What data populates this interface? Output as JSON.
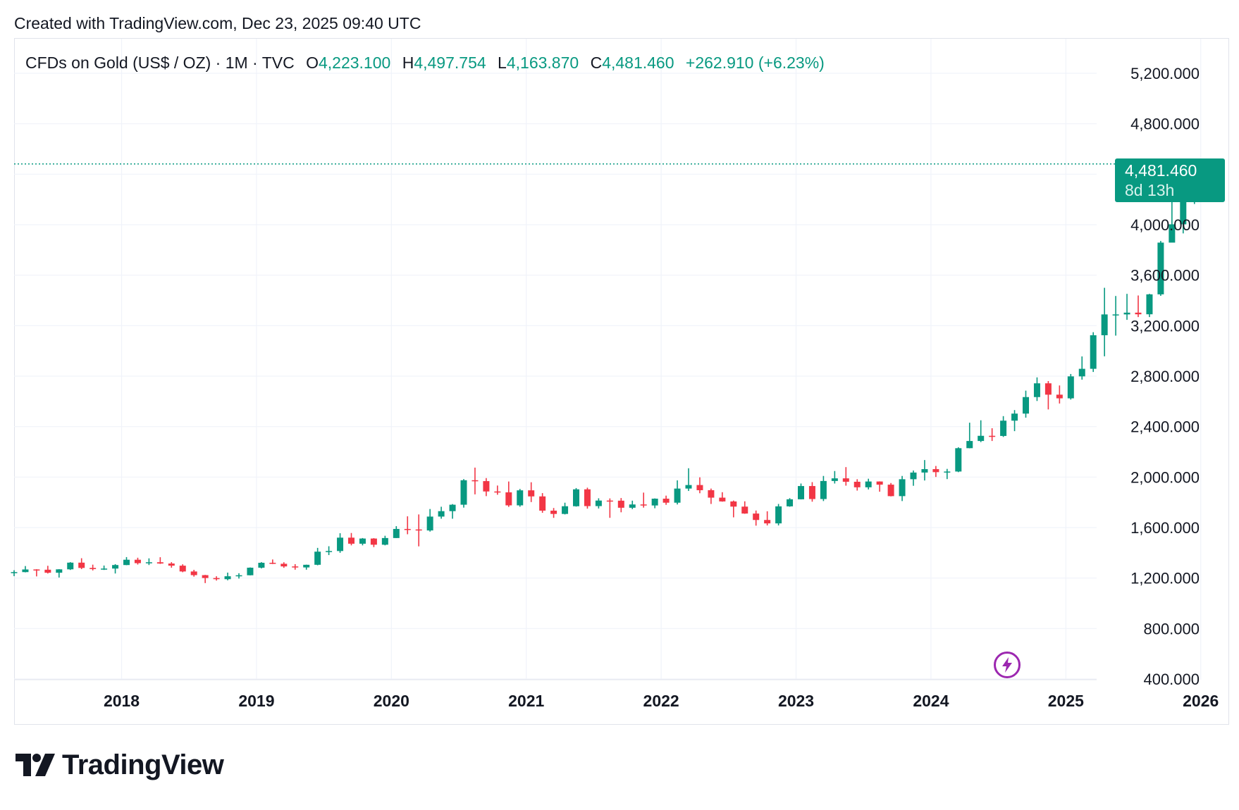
{
  "header": {
    "created": "Created with TradingView.com, Dec 23, 2025 09:40 UTC"
  },
  "legend": {
    "symbol": "CFDs on Gold (US$ / OZ) · 1M · TVC",
    "open_label": "O",
    "open": "4,223.100",
    "high_label": "H",
    "high": "4,497.754",
    "low_label": "L",
    "low": "4,163.870",
    "close_label": "C",
    "close": "4,481.460",
    "change": "+262.910 (+6.23%)"
  },
  "price_tag": {
    "price": "4,481.460",
    "countdown": "8d 13h"
  },
  "brand": {
    "name": "TradingView",
    "logo_icon": "tradingview-logo-icon"
  },
  "colors": {
    "up": "#089981",
    "down": "#f23645",
    "grid": "#f0f3fa",
    "text": "#131722",
    "accent": "#9c27b0"
  },
  "chart_data": {
    "type": "candlestick",
    "interval": "1M",
    "title": "CFDs on Gold (US$ / OZ) · 1M · TVC",
    "x_labels": [
      "2018",
      "2019",
      "2020",
      "2021",
      "2022",
      "2023",
      "2024",
      "2025",
      "2026"
    ],
    "y_ticks": [
      400,
      800,
      1200,
      1600,
      2000,
      2400,
      2800,
      3200,
      3600,
      4000,
      4800,
      5200
    ],
    "y_tick_labels": [
      "400.000",
      "800.000",
      "1,200.000",
      "1,600.000",
      "2,000.000",
      "2,400.000",
      "2,800.000",
      "3,200.000",
      "3,600.000",
      "4,000.000",
      "4,800.000",
      "5,200.000"
    ],
    "ylim": [
      350,
      5350
    ],
    "start": "2017-03",
    "grid": true,
    "last_price_line": 4481.46,
    "candles": [
      {
        "t": "2017-03",
        "o": 1240,
        "h": 1262,
        "l": 1215,
        "c": 1247
      },
      {
        "t": "2017-04",
        "o": 1247,
        "h": 1295,
        "l": 1245,
        "c": 1268
      },
      {
        "t": "2017-05",
        "o": 1268,
        "h": 1270,
        "l": 1213,
        "c": 1266
      },
      {
        "t": "2017-06",
        "o": 1266,
        "h": 1297,
        "l": 1236,
        "c": 1242
      },
      {
        "t": "2017-07",
        "o": 1242,
        "h": 1270,
        "l": 1204,
        "c": 1269
      },
      {
        "t": "2017-08",
        "o": 1269,
        "h": 1326,
        "l": 1264,
        "c": 1322
      },
      {
        "t": "2017-09",
        "o": 1322,
        "h": 1357,
        "l": 1271,
        "c": 1280
      },
      {
        "t": "2017-10",
        "o": 1280,
        "h": 1306,
        "l": 1260,
        "c": 1271
      },
      {
        "t": "2017-11",
        "o": 1271,
        "h": 1299,
        "l": 1264,
        "c": 1275
      },
      {
        "t": "2017-12",
        "o": 1275,
        "h": 1310,
        "l": 1236,
        "c": 1303
      },
      {
        "t": "2018-01",
        "o": 1303,
        "h": 1366,
        "l": 1302,
        "c": 1345
      },
      {
        "t": "2018-02",
        "o": 1345,
        "h": 1361,
        "l": 1307,
        "c": 1318
      },
      {
        "t": "2018-03",
        "o": 1318,
        "h": 1356,
        "l": 1303,
        "c": 1325
      },
      {
        "t": "2018-04",
        "o": 1325,
        "h": 1365,
        "l": 1312,
        "c": 1315
      },
      {
        "t": "2018-05",
        "o": 1315,
        "h": 1326,
        "l": 1282,
        "c": 1298
      },
      {
        "t": "2018-06",
        "o": 1298,
        "h": 1309,
        "l": 1246,
        "c": 1252
      },
      {
        "t": "2018-07",
        "o": 1252,
        "h": 1265,
        "l": 1211,
        "c": 1223
      },
      {
        "t": "2018-08",
        "o": 1223,
        "h": 1225,
        "l": 1160,
        "c": 1200
      },
      {
        "t": "2018-09",
        "o": 1200,
        "h": 1214,
        "l": 1180,
        "c": 1191
      },
      {
        "t": "2018-10",
        "o": 1191,
        "h": 1243,
        "l": 1182,
        "c": 1214
      },
      {
        "t": "2018-11",
        "o": 1214,
        "h": 1238,
        "l": 1196,
        "c": 1222
      },
      {
        "t": "2018-12",
        "o": 1222,
        "h": 1284,
        "l": 1221,
        "c": 1282
      },
      {
        "t": "2019-01",
        "o": 1282,
        "h": 1326,
        "l": 1276,
        "c": 1321
      },
      {
        "t": "2019-02",
        "o": 1321,
        "h": 1347,
        "l": 1311,
        "c": 1313
      },
      {
        "t": "2019-03",
        "o": 1313,
        "h": 1325,
        "l": 1281,
        "c": 1292
      },
      {
        "t": "2019-04",
        "o": 1292,
        "h": 1310,
        "l": 1266,
        "c": 1284
      },
      {
        "t": "2019-05",
        "o": 1284,
        "h": 1306,
        "l": 1266,
        "c": 1305
      },
      {
        "t": "2019-06",
        "o": 1305,
        "h": 1439,
        "l": 1301,
        "c": 1409
      },
      {
        "t": "2019-07",
        "o": 1409,
        "h": 1452,
        "l": 1382,
        "c": 1414
      },
      {
        "t": "2019-08",
        "o": 1414,
        "h": 1555,
        "l": 1400,
        "c": 1520
      },
      {
        "t": "2019-09",
        "o": 1520,
        "h": 1557,
        "l": 1459,
        "c": 1472
      },
      {
        "t": "2019-10",
        "o": 1472,
        "h": 1517,
        "l": 1459,
        "c": 1513
      },
      {
        "t": "2019-11",
        "o": 1513,
        "h": 1516,
        "l": 1445,
        "c": 1464
      },
      {
        "t": "2019-12",
        "o": 1464,
        "h": 1535,
        "l": 1459,
        "c": 1517
      },
      {
        "t": "2020-01",
        "o": 1517,
        "h": 1611,
        "l": 1517,
        "c": 1589
      },
      {
        "t": "2020-02",
        "o": 1589,
        "h": 1689,
        "l": 1547,
        "c": 1585
      },
      {
        "t": "2020-03",
        "o": 1585,
        "h": 1704,
        "l": 1451,
        "c": 1577
      },
      {
        "t": "2020-04",
        "o": 1577,
        "h": 1747,
        "l": 1568,
        "c": 1687
      },
      {
        "t": "2020-05",
        "o": 1687,
        "h": 1765,
        "l": 1670,
        "c": 1730
      },
      {
        "t": "2020-06",
        "o": 1730,
        "h": 1786,
        "l": 1670,
        "c": 1781
      },
      {
        "t": "2020-07",
        "o": 1781,
        "h": 1984,
        "l": 1758,
        "c": 1975
      },
      {
        "t": "2020-08",
        "o": 1975,
        "h": 2075,
        "l": 1863,
        "c": 1968
      },
      {
        "t": "2020-09",
        "o": 1968,
        "h": 1992,
        "l": 1849,
        "c": 1886
      },
      {
        "t": "2020-10",
        "o": 1886,
        "h": 1933,
        "l": 1860,
        "c": 1879
      },
      {
        "t": "2020-11",
        "o": 1879,
        "h": 1965,
        "l": 1764,
        "c": 1776
      },
      {
        "t": "2020-12",
        "o": 1776,
        "h": 1906,
        "l": 1765,
        "c": 1895
      },
      {
        "t": "2021-01",
        "o": 1895,
        "h": 1959,
        "l": 1802,
        "c": 1847
      },
      {
        "t": "2021-02",
        "o": 1847,
        "h": 1873,
        "l": 1717,
        "c": 1734
      },
      {
        "t": "2021-03",
        "o": 1734,
        "h": 1755,
        "l": 1677,
        "c": 1708
      },
      {
        "t": "2021-04",
        "o": 1708,
        "h": 1797,
        "l": 1704,
        "c": 1769
      },
      {
        "t": "2021-05",
        "o": 1769,
        "h": 1913,
        "l": 1766,
        "c": 1903
      },
      {
        "t": "2021-06",
        "o": 1903,
        "h": 1916,
        "l": 1750,
        "c": 1770
      },
      {
        "t": "2021-07",
        "o": 1770,
        "h": 1832,
        "l": 1751,
        "c": 1814
      },
      {
        "t": "2021-08",
        "o": 1814,
        "h": 1831,
        "l": 1677,
        "c": 1813
      },
      {
        "t": "2021-09",
        "o": 1813,
        "h": 1834,
        "l": 1721,
        "c": 1757
      },
      {
        "t": "2021-10",
        "o": 1757,
        "h": 1813,
        "l": 1746,
        "c": 1783
      },
      {
        "t": "2021-11",
        "o": 1783,
        "h": 1877,
        "l": 1758,
        "c": 1775
      },
      {
        "t": "2021-12",
        "o": 1775,
        "h": 1831,
        "l": 1753,
        "c": 1829
      },
      {
        "t": "2022-01",
        "o": 1829,
        "h": 1853,
        "l": 1780,
        "c": 1797
      },
      {
        "t": "2022-02",
        "o": 1797,
        "h": 1974,
        "l": 1783,
        "c": 1909
      },
      {
        "t": "2022-03",
        "o": 1909,
        "h": 2070,
        "l": 1890,
        "c": 1937
      },
      {
        "t": "2022-04",
        "o": 1937,
        "h": 1998,
        "l": 1872,
        "c": 1896
      },
      {
        "t": "2022-05",
        "o": 1896,
        "h": 1909,
        "l": 1787,
        "c": 1837
      },
      {
        "t": "2022-06",
        "o": 1837,
        "h": 1880,
        "l": 1805,
        "c": 1807
      },
      {
        "t": "2022-07",
        "o": 1807,
        "h": 1814,
        "l": 1681,
        "c": 1766
      },
      {
        "t": "2022-08",
        "o": 1766,
        "h": 1808,
        "l": 1709,
        "c": 1711
      },
      {
        "t": "2022-09",
        "o": 1711,
        "h": 1735,
        "l": 1615,
        "c": 1660
      },
      {
        "t": "2022-10",
        "o": 1660,
        "h": 1729,
        "l": 1617,
        "c": 1633
      },
      {
        "t": "2022-11",
        "o": 1633,
        "h": 1787,
        "l": 1617,
        "c": 1768
      },
      {
        "t": "2022-12",
        "o": 1768,
        "h": 1833,
        "l": 1765,
        "c": 1824
      },
      {
        "t": "2023-01",
        "o": 1824,
        "h": 1949,
        "l": 1823,
        "c": 1929
      },
      {
        "t": "2023-02",
        "o": 1929,
        "h": 1960,
        "l": 1805,
        "c": 1826
      },
      {
        "t": "2023-03",
        "o": 1826,
        "h": 2009,
        "l": 1810,
        "c": 1969
      },
      {
        "t": "2023-04",
        "o": 1969,
        "h": 2048,
        "l": 1949,
        "c": 1990
      },
      {
        "t": "2023-05",
        "o": 1990,
        "h": 2079,
        "l": 1932,
        "c": 1963
      },
      {
        "t": "2023-06",
        "o": 1963,
        "h": 1983,
        "l": 1893,
        "c": 1919
      },
      {
        "t": "2023-07",
        "o": 1919,
        "h": 1987,
        "l": 1902,
        "c": 1965
      },
      {
        "t": "2023-08",
        "o": 1965,
        "h": 1966,
        "l": 1884,
        "c": 1940
      },
      {
        "t": "2023-09",
        "o": 1940,
        "h": 1953,
        "l": 1847,
        "c": 1849
      },
      {
        "t": "2023-10",
        "o": 1849,
        "h": 2009,
        "l": 1810,
        "c": 1983
      },
      {
        "t": "2023-11",
        "o": 1983,
        "h": 2052,
        "l": 1931,
        "c": 2036
      },
      {
        "t": "2023-12",
        "o": 2036,
        "h": 2135,
        "l": 1973,
        "c": 2063
      },
      {
        "t": "2024-01",
        "o": 2063,
        "h": 2088,
        "l": 2001,
        "c": 2039
      },
      {
        "t": "2024-02",
        "o": 2039,
        "h": 2065,
        "l": 1984,
        "c": 2044
      },
      {
        "t": "2024-03",
        "o": 2044,
        "h": 2236,
        "l": 2039,
        "c": 2229
      },
      {
        "t": "2024-04",
        "o": 2229,
        "h": 2431,
        "l": 2228,
        "c": 2286
      },
      {
        "t": "2024-05",
        "o": 2286,
        "h": 2450,
        "l": 2277,
        "c": 2327
      },
      {
        "t": "2024-06",
        "o": 2327,
        "h": 2387,
        "l": 2286,
        "c": 2326
      },
      {
        "t": "2024-07",
        "o": 2326,
        "h": 2483,
        "l": 2318,
        "c": 2447
      },
      {
        "t": "2024-08",
        "o": 2447,
        "h": 2531,
        "l": 2364,
        "c": 2503
      },
      {
        "t": "2024-09",
        "o": 2503,
        "h": 2685,
        "l": 2471,
        "c": 2634
      },
      {
        "t": "2024-10",
        "o": 2634,
        "h": 2790,
        "l": 2603,
        "c": 2743
      },
      {
        "t": "2024-11",
        "o": 2743,
        "h": 2761,
        "l": 2536,
        "c": 2653
      },
      {
        "t": "2024-12",
        "o": 2653,
        "h": 2726,
        "l": 2583,
        "c": 2624
      },
      {
        "t": "2025-01",
        "o": 2624,
        "h": 2817,
        "l": 2614,
        "c": 2798
      },
      {
        "t": "2025-02",
        "o": 2798,
        "h": 2956,
        "l": 2772,
        "c": 2858
      },
      {
        "t": "2025-03",
        "o": 2858,
        "h": 3148,
        "l": 2833,
        "c": 3124
      },
      {
        "t": "2025-04",
        "o": 3124,
        "h": 3500,
        "l": 2957,
        "c": 3289
      },
      {
        "t": "2025-05",
        "o": 3289,
        "h": 3435,
        "l": 3121,
        "c": 3289
      },
      {
        "t": "2025-06",
        "o": 3289,
        "h": 3452,
        "l": 3246,
        "c": 3303
      },
      {
        "t": "2025-07",
        "o": 3303,
        "h": 3439,
        "l": 3268,
        "c": 3290
      },
      {
        "t": "2025-08",
        "o": 3290,
        "h": 3452,
        "l": 3268,
        "c": 3448
      },
      {
        "t": "2025-09",
        "o": 3448,
        "h": 3871,
        "l": 3436,
        "c": 3858
      },
      {
        "t": "2025-10",
        "o": 3858,
        "h": 4381,
        "l": 3886,
        "c": 4003
      },
      {
        "t": "2025-11",
        "o": 4003,
        "h": 4245,
        "l": 3931,
        "c": 4223
      },
      {
        "t": "2025-12",
        "o": 4223.1,
        "h": 4497.754,
        "l": 4163.87,
        "c": 4481.46
      }
    ]
  }
}
